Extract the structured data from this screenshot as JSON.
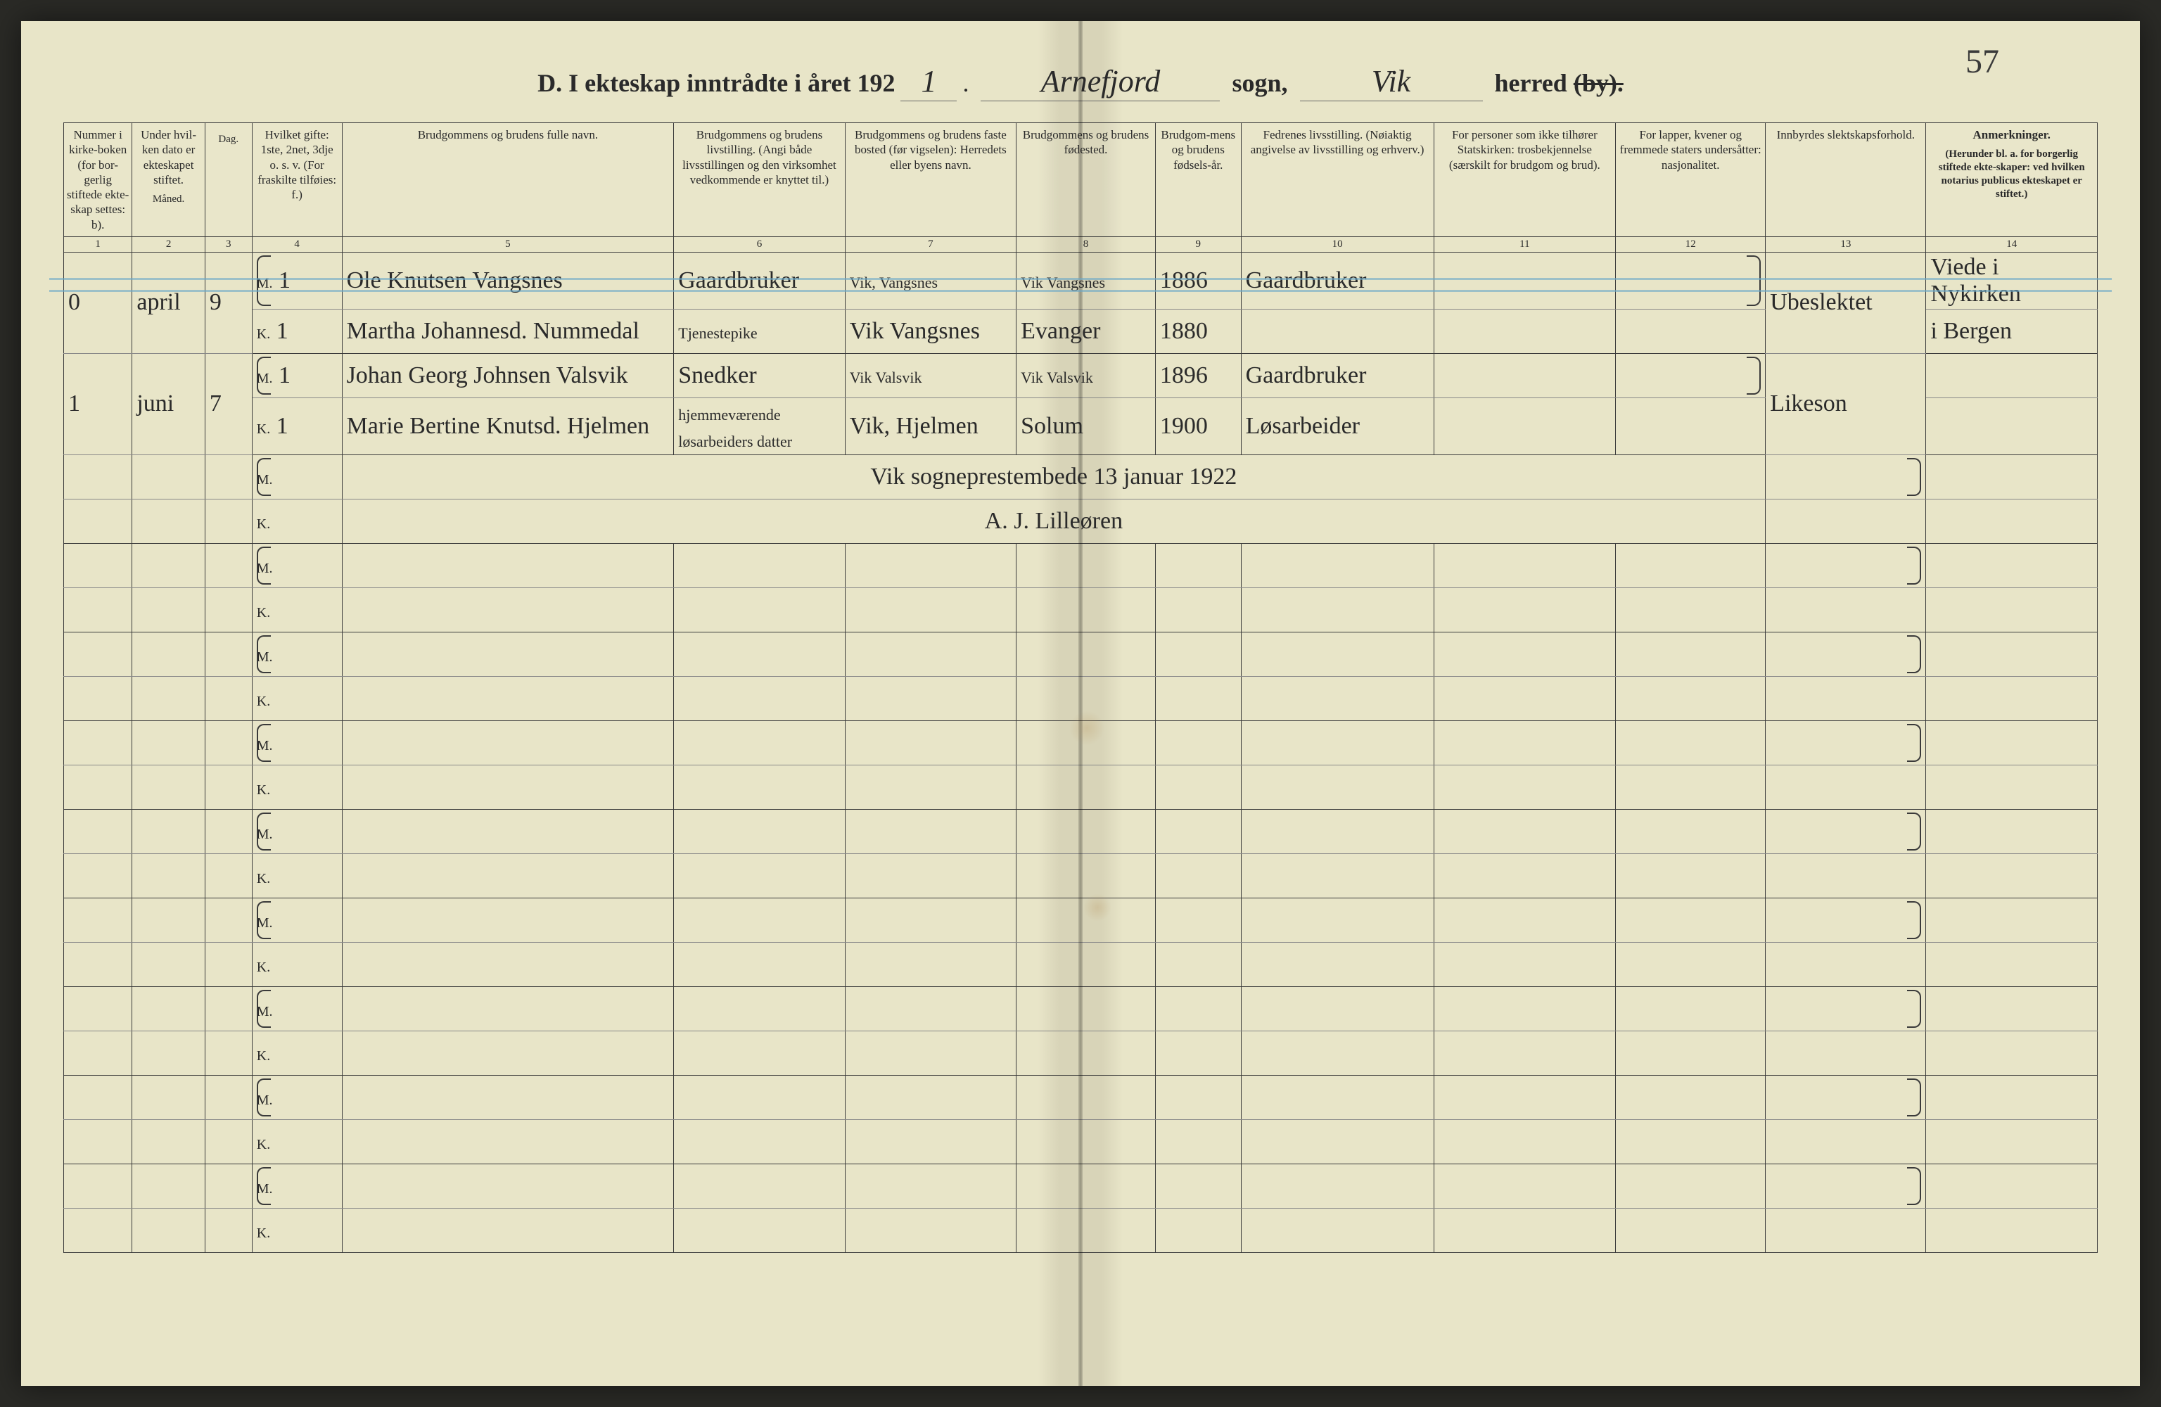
{
  "page_number_handwritten": "57",
  "title": {
    "prefix": "D.   I ekteskap inntrådte i året 192",
    "year_suffix": "1",
    "parish_label": "sogn,",
    "parish_value": "Arnefjord",
    "district_label": "herred",
    "district_value": "Vik",
    "struck_word": "(by)."
  },
  "columns": [
    {
      "num": "1",
      "label": "Nummer i kirke-boken (for bor-gerlig stiftede ekte-skap settes: b).",
      "width": "3.2%"
    },
    {
      "num": "2",
      "label": "Under hvil-ken dato er ekteskapet stiftet.",
      "sub": "Måned.",
      "width": "3.4%"
    },
    {
      "num": "3",
      "label": "",
      "sub": "Dag.",
      "width": "2.2%"
    },
    {
      "num": "4",
      "label": "Hvilket gifte: 1ste, 2net, 3dje o. s. v. (For fraskilte tilføies: f.)",
      "width": "4.2%"
    },
    {
      "num": "5",
      "label": "Brudgommens og brudens fulle navn.",
      "width": "15.5%"
    },
    {
      "num": "6",
      "label": "Brudgommens og brudens livstilling. (Angi både livsstillingen og den virksomhet vedkommende er knyttet til.)",
      "width": "8%"
    },
    {
      "num": "7",
      "label": "Brudgommens og brudens faste bosted (før vigselen): Herredets eller byens navn.",
      "width": "8%"
    },
    {
      "num": "8",
      "label": "Brudgommens og brudens fødested.",
      "width": "6.5%"
    },
    {
      "num": "9",
      "label": "Brudgom-mens og brudens fødsels-år.",
      "width": "4%"
    },
    {
      "num": "10",
      "label": "Fedrenes livsstilling. (Nøiaktig angivelse av livsstilling og erhverv.)",
      "width": "9%"
    },
    {
      "num": "11",
      "label": "For personer som ikke tilhører Statskirken: trosbekjennelse (særskilt for brudgom og brud).",
      "width": "8.5%"
    },
    {
      "num": "12",
      "label": "For lapper, kvener og fremmede staters undersåtter: nasjonalitet.",
      "width": "7%"
    },
    {
      "num": "13",
      "label": "Innbyrdes slektskapsforhold.",
      "width": "7.5%"
    },
    {
      "num": "14",
      "label": "Anmerkninger.",
      "sub": "(Herunder bl. a. for borgerlig stiftede ekte-skaper: ved hvilken notarius publicus ekteskapet er stiftet.)",
      "width": "8%"
    }
  ],
  "entries": [
    {
      "number": "0",
      "month": "april",
      "day": "9",
      "groom": {
        "gifte": "1",
        "name": "Ole Knutsen Vangsnes",
        "occupation": "Gaardbruker",
        "residence": "Vik, Vangsnes",
        "birthplace": "Vik Vangsnes",
        "year": "1886",
        "father": "Gaardbruker"
      },
      "bride": {
        "gifte": "1",
        "name": "Martha Johannesd. Nummedal",
        "occupation": "Tjenestepike",
        "residence": "Vik Vangsnes",
        "birthplace": "Evanger",
        "year": "1880",
        "father": ""
      },
      "col13": "Ubeslektet",
      "remarks_top": "Viede i Nykirken",
      "remarks_bottom": "i Bergen",
      "blue_stripe": true
    },
    {
      "number": "1",
      "month": "juni",
      "day": "7",
      "groom": {
        "gifte": "1",
        "name": "Johan Georg Johnsen Valsvik",
        "occupation": "Snedker",
        "residence": "Vik Valsvik",
        "birthplace": "Vik Valsvik",
        "year": "1896",
        "father": "Gaardbruker"
      },
      "bride": {
        "gifte": "1",
        "name": "Marie Bertine Knutsd. Hjelmen",
        "occupation": "hjemmeværende løsarbeiders datter",
        "residence": "Vik, Hjelmen",
        "birthplace": "Solum",
        "year": "1900",
        "father": "Løsarbeider"
      },
      "col13": "Likeson",
      "remarks_top": "",
      "remarks_bottom": ""
    }
  ],
  "signature_lines": [
    "Vik sogneprestembede 13 januar 1922",
    "A. J. Lilleøren"
  ],
  "colors": {
    "paper": "#e8e5c8",
    "ink": "#2a2a2a",
    "rule": "#3a3a3a",
    "blue_stripe": "#6aa8c8"
  },
  "empty_row_pairs": 8
}
